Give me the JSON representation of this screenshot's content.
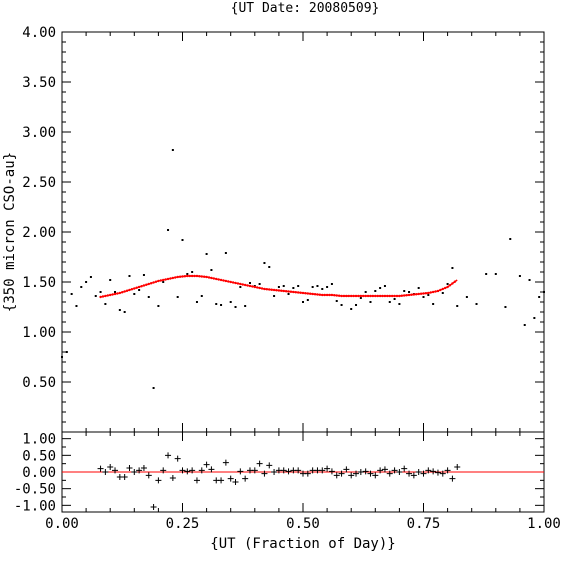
{
  "chart_data": [
    {
      "type": "scatter",
      "title": "{UT Date: 20080509}",
      "xlabel": "{UT (Fraction of Day)}",
      "ylabel": "{350 micron CSO-au}",
      "xlim": [
        0.0,
        1.0
      ],
      "ylim": [
        0.0,
        4.0
      ],
      "x_ticks": [
        "0.00",
        "0.25",
        "0.50",
        "0.75",
        "1.00"
      ],
      "y_ticks": [
        "0.50",
        "1.00",
        "1.50",
        "2.00",
        "2.50",
        "3.00",
        "3.50",
        "4.00"
      ],
      "grid": false,
      "series": [
        {
          "kind": "points",
          "color": "#000000",
          "x": [
            0.0,
            0.01,
            0.02,
            0.03,
            0.04,
            0.05,
            0.06,
            0.07,
            0.08,
            0.09,
            0.1,
            0.11,
            0.12,
            0.13,
            0.14,
            0.15,
            0.16,
            0.17,
            0.18,
            0.19,
            0.2,
            0.21,
            0.22,
            0.23,
            0.24,
            0.25,
            0.26,
            0.27,
            0.28,
            0.29,
            0.3,
            0.31,
            0.32,
            0.33,
            0.34,
            0.35,
            0.36,
            0.37,
            0.38,
            0.39,
            0.4,
            0.41,
            0.42,
            0.43,
            0.44,
            0.45,
            0.46,
            0.47,
            0.48,
            0.49,
            0.5,
            0.51,
            0.52,
            0.53,
            0.54,
            0.55,
            0.56,
            0.57,
            0.58,
            0.59,
            0.6,
            0.61,
            0.62,
            0.63,
            0.64,
            0.65,
            0.66,
            0.67,
            0.68,
            0.69,
            0.7,
            0.71,
            0.72,
            0.73,
            0.74,
            0.75,
            0.76,
            0.77,
            0.78,
            0.79,
            0.8,
            0.81,
            0.82,
            0.84,
            0.86,
            0.88,
            0.9,
            0.92,
            0.93,
            0.95,
            0.96,
            0.97,
            0.98,
            0.99,
            1.0
          ],
          "y": [
            0.75,
            0.8,
            1.38,
            1.26,
            1.45,
            1.5,
            1.55,
            1.36,
            1.4,
            1.28,
            1.52,
            1.4,
            1.22,
            1.2,
            1.56,
            1.38,
            1.42,
            1.57,
            1.35,
            0.44,
            1.26,
            1.5,
            2.02,
            2.82,
            1.35,
            1.92,
            1.58,
            1.6,
            1.3,
            1.36,
            1.78,
            1.62,
            1.28,
            1.27,
            1.79,
            1.3,
            1.25,
            1.45,
            1.26,
            1.49,
            1.46,
            1.48,
            1.69,
            1.65,
            1.36,
            1.45,
            1.46,
            1.38,
            1.44,
            1.46,
            1.3,
            1.32,
            1.45,
            1.46,
            1.43,
            1.45,
            1.48,
            1.31,
            1.27,
            1.36,
            1.23,
            1.27,
            1.34,
            1.4,
            1.3,
            1.41,
            1.44,
            1.46,
            1.3,
            1.33,
            1.28,
            1.41,
            1.4,
            1.38,
            1.44,
            1.35,
            1.37,
            1.28,
            1.41,
            1.39,
            1.48,
            1.64,
            1.26,
            1.35,
            1.28,
            1.58,
            1.58,
            1.25,
            1.93,
            1.56,
            1.07,
            1.52,
            1.14,
            1.35,
            1.4
          ]
        },
        {
          "kind": "fit",
          "color": "#ff0000",
          "x": [
            0.08,
            0.1,
            0.12,
            0.14,
            0.16,
            0.18,
            0.2,
            0.22,
            0.24,
            0.26,
            0.28,
            0.3,
            0.32,
            0.34,
            0.36,
            0.38,
            0.4,
            0.42,
            0.44,
            0.46,
            0.48,
            0.5,
            0.52,
            0.54,
            0.56,
            0.58,
            0.6,
            0.62,
            0.64,
            0.66,
            0.68,
            0.7,
            0.72,
            0.74,
            0.76,
            0.78,
            0.8,
            0.82
          ],
          "y": [
            1.35,
            1.37,
            1.39,
            1.42,
            1.45,
            1.48,
            1.51,
            1.53,
            1.55,
            1.56,
            1.56,
            1.55,
            1.53,
            1.51,
            1.49,
            1.47,
            1.45,
            1.43,
            1.42,
            1.41,
            1.4,
            1.39,
            1.38,
            1.37,
            1.37,
            1.36,
            1.36,
            1.36,
            1.36,
            1.36,
            1.36,
            1.36,
            1.37,
            1.38,
            1.39,
            1.41,
            1.45,
            1.52
          ]
        }
      ]
    },
    {
      "type": "scatter",
      "xlim": [
        0.0,
        1.0
      ],
      "ylim": [
        -1.2,
        1.2
      ],
      "x_ticks": [
        "0.00",
        "0.25",
        "0.50",
        "0.75",
        "1.00"
      ],
      "y_ticks": [
        "-1.00",
        "-0.50",
        "0.00",
        "0.50",
        "1.00"
      ],
      "zero_line_color": "#ff0000",
      "series": [
        {
          "kind": "residuals",
          "marker": "+",
          "color": "#000000",
          "x": [
            0.08,
            0.09,
            0.1,
            0.11,
            0.12,
            0.13,
            0.14,
            0.15,
            0.16,
            0.17,
            0.18,
            0.19,
            0.2,
            0.21,
            0.22,
            0.23,
            0.24,
            0.25,
            0.26,
            0.27,
            0.28,
            0.29,
            0.3,
            0.31,
            0.32,
            0.33,
            0.34,
            0.35,
            0.36,
            0.37,
            0.38,
            0.39,
            0.4,
            0.41,
            0.42,
            0.43,
            0.44,
            0.45,
            0.46,
            0.47,
            0.48,
            0.49,
            0.5,
            0.51,
            0.52,
            0.53,
            0.54,
            0.55,
            0.56,
            0.57,
            0.58,
            0.59,
            0.6,
            0.61,
            0.62,
            0.63,
            0.64,
            0.65,
            0.66,
            0.67,
            0.68,
            0.69,
            0.7,
            0.71,
            0.72,
            0.73,
            0.74,
            0.75,
            0.76,
            0.77,
            0.78,
            0.79,
            0.8,
            0.81,
            0.82
          ],
          "y": [
            0.1,
            0.0,
            0.15,
            0.05,
            -0.15,
            -0.15,
            0.12,
            0.0,
            0.05,
            0.12,
            -0.1,
            -1.05,
            -0.25,
            0.05,
            0.5,
            -0.18,
            0.4,
            0.05,
            0.02,
            0.05,
            -0.25,
            0.05,
            0.22,
            0.08,
            -0.25,
            -0.25,
            0.28,
            -0.2,
            -0.3,
            0.02,
            -0.2,
            0.05,
            0.05,
            0.25,
            -0.05,
            0.2,
            0.0,
            0.05,
            0.05,
            0.02,
            0.05,
            0.05,
            -0.05,
            -0.05,
            0.05,
            0.05,
            0.05,
            0.1,
            0.02,
            -0.1,
            -0.05,
            0.08,
            -0.1,
            -0.05,
            0.0,
            0.02,
            -0.05,
            -0.1,
            0.05,
            0.08,
            -0.05,
            0.05,
            0.0,
            0.1,
            -0.05,
            -0.1,
            0.0,
            -0.05,
            0.05,
            0.02,
            -0.02,
            -0.05,
            0.05,
            -0.2,
            0.15
          ]
        }
      ]
    }
  ]
}
